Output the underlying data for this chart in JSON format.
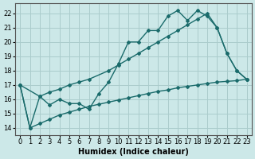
{
  "xlabel": "Humidex (Indice chaleur)",
  "bg_color": "#cce8e8",
  "line_color": "#1a6b6b",
  "grid_color": "#aacccc",
  "xlim": [
    -0.5,
    23.5
  ],
  "ylim": [
    13.5,
    22.7
  ],
  "yticks": [
    14,
    15,
    16,
    17,
    18,
    19,
    20,
    21,
    22
  ],
  "xticks": [
    0,
    1,
    2,
    3,
    4,
    5,
    6,
    7,
    8,
    9,
    10,
    11,
    12,
    13,
    14,
    15,
    16,
    17,
    18,
    19,
    20,
    21,
    22,
    23
  ],
  "line1_x": [
    0,
    1,
    2,
    3,
    4,
    5,
    6,
    7,
    8,
    9,
    10,
    11,
    12,
    13,
    14,
    15,
    16,
    17,
    18,
    19,
    20,
    21,
    22,
    23
  ],
  "line1_y": [
    17.0,
    14.0,
    16.2,
    15.6,
    16.0,
    15.7,
    15.7,
    15.3,
    16.4,
    17.2,
    18.5,
    20.0,
    20.0,
    20.8,
    20.8,
    21.8,
    22.2,
    21.5,
    22.2,
    21.8,
    21.0,
    19.2,
    18.0,
    17.4
  ],
  "line2_x": [
    0,
    2,
    3,
    4,
    5,
    6,
    7,
    9,
    10,
    11,
    12,
    13,
    14,
    15,
    16,
    17,
    18,
    19,
    20,
    21,
    22,
    23
  ],
  "line2_y": [
    17.0,
    16.2,
    16.5,
    16.7,
    17.0,
    17.2,
    17.4,
    18.0,
    18.4,
    18.8,
    19.2,
    19.6,
    20.0,
    20.4,
    20.8,
    21.2,
    21.6,
    22.0,
    21.0,
    19.2,
    18.0,
    17.4
  ],
  "line3_x": [
    0,
    1,
    2,
    3,
    4,
    5,
    6,
    7,
    8,
    9,
    10,
    11,
    12,
    13,
    14,
    15,
    16,
    17,
    18,
    19,
    20,
    21,
    22,
    23
  ],
  "line3_y": [
    17.0,
    14.0,
    14.3,
    14.6,
    14.9,
    15.1,
    15.3,
    15.5,
    15.65,
    15.8,
    15.95,
    16.1,
    16.25,
    16.4,
    16.55,
    16.65,
    16.8,
    16.9,
    17.0,
    17.1,
    17.2,
    17.25,
    17.3,
    17.4
  ],
  "marker": "D",
  "markersize": 2.0,
  "linewidth": 1.0,
  "xlabel_fontsize": 7,
  "tick_fontsize": 6
}
